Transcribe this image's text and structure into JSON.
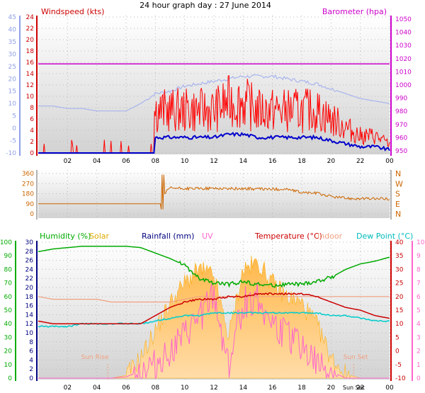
{
  "title": "24 hour graph day : 27 June 2014",
  "colors": {
    "windspeed": "#ff0000",
    "gust": "#ff0000",
    "avgwind": "#0000cc",
    "barometer": "#cc00cc",
    "temperature_axis_blue": "#8fa0e8",
    "direction": "#cc6600",
    "humidity": "#00aa00",
    "solar": "#ffaa00",
    "rainfall": "#000080",
    "uv": "#ff66cc",
    "temperature": "#cc0000",
    "indoor": "#f0a080",
    "dewpoint": "#00cccc"
  },
  "top_panel": {
    "left_label": "Windspeed (kts)",
    "right_label": "Barometer (hpa)",
    "left_ticks_kts": [
      "24",
      "22",
      "20",
      "18",
      "16",
      "14",
      "12",
      "10",
      "8",
      "6",
      "4",
      "2",
      "0"
    ],
    "left_ticks_temp": [
      "45",
      "40",
      "35",
      "30",
      "25",
      "20",
      "15",
      "10",
      "5",
      "0",
      "-5",
      "-10"
    ],
    "left_ticks_wind": [
      "24",
      "22",
      "20",
      "18",
      "16",
      "14",
      "12",
      "10",
      "8",
      "6",
      "4",
      "2",
      "0"
    ],
    "outer_left_ticks": [
      "45",
      "40",
      "35",
      "30",
      "25",
      "20",
      "15",
      "10",
      "5",
      "0",
      "-5",
      "-10"
    ],
    "inner_left_ticks": [
      "24",
      "22",
      "20",
      "18",
      "16",
      "14",
      "12",
      "10",
      "8",
      "6",
      "4",
      "2",
      "0"
    ],
    "right_ticks": [
      "1050",
      "1040",
      "1030",
      "1020",
      "1010",
      "1000",
      "990",
      "980",
      "970",
      "960",
      "950"
    ],
    "right_secondary_ticks": [
      "1050",
      "1040",
      "1030",
      "1020",
      "1010",
      "1000",
      "990",
      "980",
      "970",
      "960",
      "950"
    ],
    "x_ticks": [
      "02",
      "04",
      "06",
      "08",
      "10",
      "12",
      "14",
      "16",
      "18",
      "20",
      "22",
      "00"
    ]
  },
  "direction_panel": {
    "left_ticks": [
      "360",
      "270",
      "180",
      "90",
      "0"
    ],
    "right_labels": [
      "N",
      "W",
      "S",
      "E",
      "N"
    ]
  },
  "bottom_panel": {
    "legend": {
      "humidity": "Humidity (%)",
      "solar": "Solar",
      "rainfall": "Rainfall (mm)",
      "uv": "UV",
      "temperature": "Temperature (°C)",
      "indoor": "Indoor",
      "dewpoint": "Dew Point (°C)"
    },
    "humidity_ticks": [
      "100",
      "90",
      "80",
      "70",
      "60",
      "50",
      "40",
      "30",
      "20",
      "10",
      "0"
    ],
    "rain_ticks": [
      "30",
      "28",
      "26",
      "24",
      "22",
      "20",
      "18",
      "16",
      "14",
      "12",
      "10",
      "8",
      "6",
      "4",
      "2",
      "0"
    ],
    "temp_ticks": [
      "40",
      "35",
      "30",
      "25",
      "20",
      "15",
      "10",
      "5",
      "0",
      "-5",
      "-10"
    ],
    "uv_ticks": [
      "10",
      "9",
      "8",
      "7",
      "6",
      "5",
      "4",
      "3",
      "2",
      "1",
      "0"
    ],
    "x_ticks": [
      "02",
      "04",
      "06",
      "08",
      "10",
      "12",
      "14",
      "16",
      "18",
      "20",
      "22",
      "00"
    ],
    "sun_rise": "Sun Rise",
    "sun_set": "Sun Set",
    "sun_rise_tick": "Sun Rise",
    "sun_set_tick": "Sun Set"
  },
  "chart_data": [
    {
      "type": "line",
      "title": "24 hour graph day : 27 June 2014",
      "xlabel": "",
      "ylabel": "Windspeed (kts)",
      "x": [
        "00",
        "01",
        "02",
        "03",
        "04",
        "05",
        "06",
        "07",
        "08",
        "09",
        "10",
        "11",
        "12",
        "13",
        "14",
        "15",
        "16",
        "17",
        "18",
        "19",
        "20",
        "21",
        "22",
        "23",
        "00"
      ],
      "series": [
        {
          "name": "Barometer (hpa)",
          "values": [
            1016,
            1016,
            1016,
            1016,
            1016,
            1016,
            1016,
            1016,
            1016,
            1016,
            1016,
            1016,
            1016,
            1016,
            1016,
            1016,
            1016,
            1016,
            1016,
            1016,
            1016,
            1016,
            1016,
            1016,
            1016
          ]
        },
        {
          "values": [
            9,
            9,
            8,
            8,
            7,
            7,
            7,
            10,
            14,
            15,
            17,
            18,
            19,
            20,
            21,
            21,
            21,
            20,
            19,
            18,
            16,
            14,
            12,
            11,
            10
          ]
        },
        {
          "values": [
            0,
            0,
            0,
            0,
            0,
            0,
            0,
            1,
            5,
            5,
            5,
            5,
            5,
            6,
            6,
            5,
            5,
            5,
            5,
            5,
            4,
            3,
            2,
            2,
            1
          ]
        }
      ],
      "ylim": [
        0,
        24
      ]
    },
    {
      "type": "line",
      "xlabel": "",
      "ylabel": "",
      "x": [
        "00",
        "01",
        "02",
        "03",
        "04",
        "05",
        "06",
        "07",
        "08",
        "09",
        "10",
        "11",
        "12",
        "13",
        "14",
        "15",
        "16",
        "17",
        "18",
        "19",
        "20",
        "21",
        "22",
        "23",
        "00"
      ],
      "series": [
        {
          "values": [
            90,
            90,
            90,
            90,
            90,
            90,
            90,
            90,
            90,
            230,
            225,
            225,
            228,
            225,
            225,
            222,
            220,
            220,
            190,
            185,
            155,
            140,
            135,
            135,
            135
          ]
        }
      ],
      "ylim": [
        0,
        360
      ]
    },
    {
      "type": "line",
      "xlabel": "",
      "ylabel": "",
      "x": [
        "00",
        "01",
        "02",
        "03",
        "04",
        "05",
        "06",
        "07",
        "08",
        "09",
        "10",
        "11",
        "12",
        "13",
        "14",
        "15",
        "16",
        "17",
        "18",
        "19",
        "20",
        "21",
        "22",
        "23",
        "00"
      ],
      "series": [
        {
          "name": "Humidity (%)",
          "values": [
            93,
            95,
            96,
            97,
            97,
            97,
            97,
            96,
            92,
            88,
            83,
            73,
            70,
            69,
            71,
            69,
            68,
            69,
            69,
            71,
            74,
            80,
            84,
            86,
            89
          ]
        },
        {
          "name": "Temperature (°C)",
          "values": [
            11,
            10,
            10,
            10,
            10,
            10,
            10,
            10,
            13,
            16,
            18,
            19,
            19,
            20,
            20,
            21,
            21,
            21,
            21,
            20,
            18,
            16,
            15,
            13,
            12
          ]
        },
        {
          "name": "Dew Point (°C)",
          "values": [
            9,
            9,
            9,
            10,
            10,
            10,
            10,
            10,
            11,
            12,
            13,
            13,
            14,
            14,
            14,
            14,
            14,
            14,
            14,
            14,
            13,
            13,
            12,
            11,
            11
          ]
        },
        {
          "name": "Indoor",
          "values": [
            20,
            19,
            19,
            19,
            19,
            18,
            18,
            18,
            18,
            18,
            19,
            20,
            20,
            20,
            20,
            20,
            20,
            20,
            20,
            20,
            20,
            20,
            20,
            20,
            20
          ]
        },
        {
          "name": "Solar",
          "values": [
            0,
            0,
            0,
            0,
            0,
            0,
            0.2,
            1.5,
            3.5,
            5.5,
            7,
            8,
            7.5,
            3,
            8,
            8.5,
            7,
            6,
            5.5,
            4,
            1.5,
            0.3,
            0,
            0,
            0
          ]
        },
        {
          "name": "UV",
          "values": [
            0,
            0,
            0,
            0,
            0,
            0,
            0.1,
            0.5,
            1,
            2,
            3,
            4.5,
            6,
            1,
            5.5,
            6,
            4,
            3,
            2.5,
            1,
            0.5,
            0,
            0,
            0,
            0
          ]
        }
      ],
      "ylim": [
        0,
        100
      ]
    }
  ]
}
